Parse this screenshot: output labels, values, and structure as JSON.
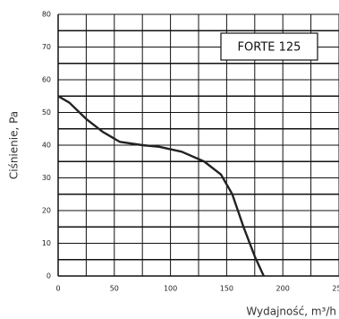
{
  "chart_data": {
    "type": "line",
    "x_label": "Wydajność, m³/h",
    "y_label": "Ciśnienie, Pa",
    "annotation": "FORTE 125",
    "series": [
      {
        "color": "#222222",
        "x": [
          0,
          10,
          25,
          40,
          55,
          75,
          90,
          110,
          130,
          145,
          155,
          165,
          175,
          183
        ],
        "values": [
          55,
          53,
          48,
          44,
          41,
          40,
          39.5,
          38,
          35,
          31,
          25,
          15,
          6,
          0
        ]
      }
    ],
    "xlim": [
      0,
      250
    ],
    "xticks": [
      0,
      50,
      100,
      150,
      200,
      250
    ],
    "ylim": [
      0,
      80
    ],
    "yticks": [
      0,
      10,
      20,
      30,
      40,
      50,
      60,
      70,
      80
    ],
    "grid": true
  }
}
